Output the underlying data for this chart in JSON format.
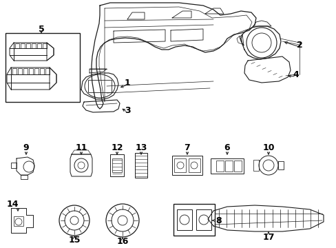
{
  "bg_color": "#ffffff",
  "line_color": "#1a1a1a",
  "fig_width": 4.89,
  "fig_height": 3.6,
  "dpi": 100,
  "components": {
    "label_fontsize": 9,
    "arrow_lw": 0.8,
    "part_lw": 0.7
  }
}
